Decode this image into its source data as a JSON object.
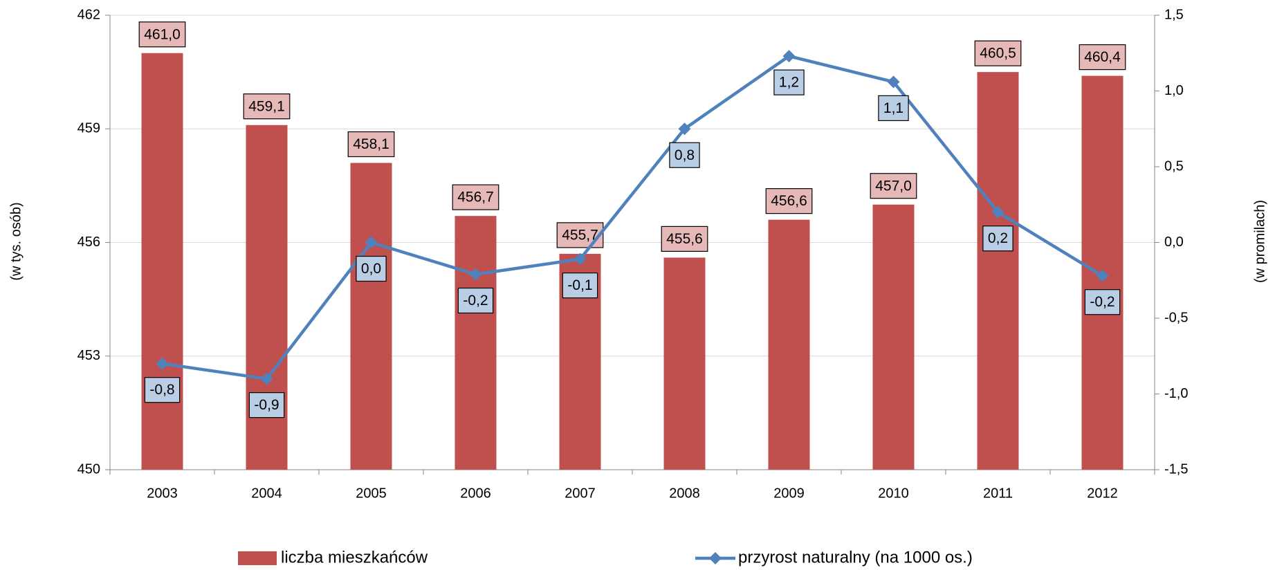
{
  "chart_data": {
    "type": "bar",
    "categories": [
      "2003",
      "2004",
      "2005",
      "2006",
      "2007",
      "2008",
      "2009",
      "2010",
      "2011",
      "2012"
    ],
    "series": [
      {
        "name": "liczba mieszkańców",
        "type": "bar",
        "color": "#c0504d",
        "label_fill": "#e6b9b8",
        "values": [
          461.0,
          459.1,
          458.1,
          456.7,
          455.7,
          455.6,
          456.6,
          457.0,
          460.5,
          460.4
        ],
        "value_labels": [
          "461,0",
          "459,1",
          "458,1",
          "456,7",
          "455,7",
          "455,6",
          "456,6",
          "457,0",
          "460,5",
          "460,4"
        ]
      },
      {
        "name": "przyrost naturalny (na 1000 os.)",
        "type": "line",
        "axis": "y2",
        "color": "#4f81bd",
        "label_fill": "#b9cde5",
        "values": [
          -0.8,
          -0.9,
          0.0,
          -0.21,
          -0.11,
          0.75,
          1.23,
          1.06,
          0.2,
          -0.22
        ],
        "value_labels": [
          "-0,8",
          "-0,9",
          "0,0",
          "-0,2",
          "-0,1",
          "0,8",
          "1,2",
          "1,1",
          "0,2",
          "-0,2"
        ]
      }
    ],
    "ylabel": "(w tys. osób)",
    "y2label": "(w promilach)",
    "ylim": [
      450,
      462
    ],
    "yticks": [
      450,
      453,
      456,
      459,
      462
    ],
    "y2lim": [
      -1.5,
      1.5
    ],
    "y2ticks": [
      {
        "value": -1.5,
        "label": "-1,5"
      },
      {
        "value": -1.0,
        "label": "-1,0"
      },
      {
        "value": -0.5,
        "label": "-0,5"
      },
      {
        "value": 0.0,
        "label": "0,0"
      },
      {
        "value": 0.5,
        "label": "0,5"
      },
      {
        "value": 1.0,
        "label": "1,0"
      },
      {
        "value": 1.5,
        "label": "1,5"
      }
    ],
    "grid": true,
    "legend": "bottom"
  }
}
